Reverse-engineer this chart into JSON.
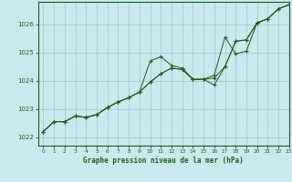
{
  "xlabel": "Graphe pression niveau de la mer (hPa)",
  "xlim": [
    -0.5,
    23
  ],
  "ylim": [
    1021.7,
    1026.8
  ],
  "yticks": [
    1022,
    1023,
    1024,
    1025,
    1026
  ],
  "xticks": [
    0,
    1,
    2,
    3,
    4,
    5,
    6,
    7,
    8,
    9,
    10,
    11,
    12,
    13,
    14,
    15,
    16,
    17,
    18,
    19,
    20,
    21,
    22,
    23
  ],
  "bg_color": "#cce8ef",
  "grid_color": "#aacccc",
  "line_color": "#1e5c1e",
  "series1_x": [
    0,
    1,
    2,
    3,
    4,
    5,
    6,
    7,
    8,
    9,
    10,
    11,
    12,
    13,
    14,
    15,
    16,
    17,
    18,
    19,
    20,
    21,
    22,
    23
  ],
  "series1_y": [
    1022.2,
    1022.55,
    1022.55,
    1022.75,
    1022.7,
    1022.8,
    1023.05,
    1023.25,
    1023.4,
    1023.6,
    1024.7,
    1024.85,
    1024.55,
    1024.45,
    1024.05,
    1024.05,
    1024.2,
    1025.55,
    1024.95,
    1025.05,
    1026.05,
    1026.2,
    1026.55,
    1026.7
  ],
  "series2_x": [
    0,
    1,
    2,
    3,
    4,
    5,
    6,
    7,
    8,
    9,
    10,
    11,
    12,
    13,
    14,
    15,
    16,
    17,
    18,
    19,
    20,
    21,
    22,
    23
  ],
  "series2_y": [
    1022.2,
    1022.55,
    1022.55,
    1022.75,
    1022.7,
    1022.8,
    1023.05,
    1023.25,
    1023.4,
    1023.6,
    1023.95,
    1024.25,
    1024.45,
    1024.4,
    1024.05,
    1024.05,
    1024.1,
    1024.5,
    1025.4,
    1025.45,
    1026.05,
    1026.2,
    1026.55,
    1026.7
  ],
  "series3_x": [
    0,
    1,
    2,
    3,
    4,
    5,
    6,
    7,
    8,
    9,
    10,
    11,
    12,
    13,
    14,
    15,
    16,
    17,
    18,
    19,
    20,
    21,
    22,
    23
  ],
  "series3_y": [
    1022.2,
    1022.55,
    1022.55,
    1022.75,
    1022.7,
    1022.8,
    1023.05,
    1023.25,
    1023.4,
    1023.6,
    1023.95,
    1024.25,
    1024.45,
    1024.4,
    1024.05,
    1024.05,
    1023.85,
    1024.5,
    1025.4,
    1025.45,
    1026.05,
    1026.2,
    1026.55,
    1026.7
  ]
}
